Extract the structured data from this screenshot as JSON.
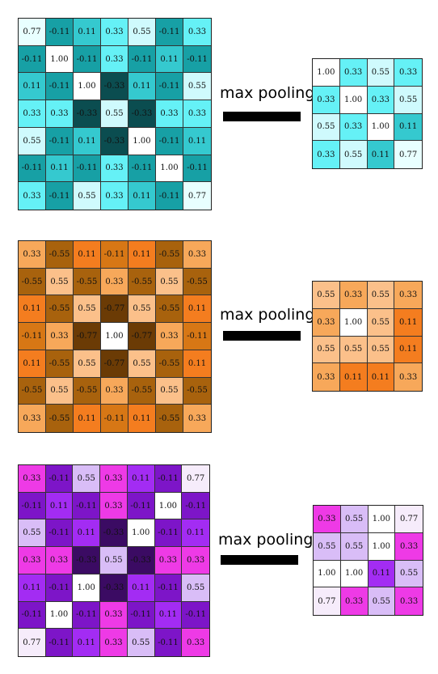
{
  "panels": [
    {
      "colors": {
        "1.00": "#ffffff",
        "0.77": "#e8ffff",
        "0.55": "#cffafd",
        "0.33": "#65f1f6",
        "0.11": "#35c9cf",
        "-0.11": "#17a0a5",
        "-0.33": "#0b4d50",
        "-0.55": "#0b4d50",
        "-0.77": "#0b4d50"
      },
      "input": [
        [
          "0.77",
          "-0.11",
          "0.11",
          "0.33",
          "0.55",
          "-0.11",
          "0.33"
        ],
        [
          "-0.11",
          "1.00",
          "-0.11",
          "0.33",
          "-0.11",
          "0.11",
          "-0.11"
        ],
        [
          "0.11",
          "-0.11",
          "1.00",
          "-0.33",
          "0.11",
          "-0.11",
          "0.55"
        ],
        [
          "0.33",
          "0.33",
          "-0.33",
          "0.55",
          "-0.33",
          "0.33",
          "0.33"
        ],
        [
          "0.55",
          "-0.11",
          "0.11",
          "-0.33",
          "1.00",
          "-0.11",
          "0.11"
        ],
        [
          "-0.11",
          "0.11",
          "-0.11",
          "0.33",
          "-0.11",
          "1.00",
          "-0.11"
        ],
        [
          "0.33",
          "-0.11",
          "0.55",
          "0.33",
          "0.11",
          "-0.11",
          "0.77"
        ]
      ],
      "label": "max pooling",
      "output": [
        [
          "1.00",
          "0.33",
          "0.55",
          "0.33"
        ],
        [
          "0.33",
          "1.00",
          "0.33",
          "0.55"
        ],
        [
          "0.55",
          "0.33",
          "1.00",
          "0.11"
        ],
        [
          "0.33",
          "0.55",
          "0.11",
          "0.77"
        ]
      ]
    },
    {
      "colors": {
        "1.00": "#ffffff",
        "0.77": "#fde0c4",
        "0.55": "#fbc08a",
        "0.33": "#f7a85a",
        "0.11": "#f47d1f",
        "-0.11": "#d77715",
        "-0.33": "#a8620d",
        "-0.55": "#a8620d",
        "-0.77": "#6b3b05"
      },
      "input": [
        [
          "0.33",
          "-0.55",
          "0.11",
          "-0.11",
          "0.11",
          "-0.55",
          "0.33"
        ],
        [
          "-0.55",
          "0.55",
          "-0.55",
          "0.33",
          "-0.55",
          "0.55",
          "-0.55"
        ],
        [
          "0.11",
          "-0.55",
          "0.55",
          "-0.77",
          "0.55",
          "-0.55",
          "0.11"
        ],
        [
          "-0.11",
          "0.33",
          "-0.77",
          "1.00",
          "-0.77",
          "0.33",
          "-0.11"
        ],
        [
          "0.11",
          "-0.55",
          "0.55",
          "-0.77",
          "0.55",
          "-0.55",
          "0.11"
        ],
        [
          "-0.55",
          "0.55",
          "-0.55",
          "0.33",
          "-0.55",
          "0.55",
          "-0.55"
        ],
        [
          "0.33",
          "-0.55",
          "0.11",
          "-0.11",
          "0.11",
          "-0.55",
          "0.33"
        ]
      ],
      "label": "max pooling",
      "output": [
        [
          "0.55",
          "0.33",
          "0.55",
          "0.33"
        ],
        [
          "0.33",
          "1.00",
          "0.55",
          "0.11"
        ],
        [
          "0.55",
          "0.55",
          "0.55",
          "0.11"
        ],
        [
          "0.33",
          "0.11",
          "0.11",
          "0.33"
        ]
      ]
    },
    {
      "colors": {
        "1.00": "#ffffff",
        "0.77": "#f6ecfb",
        "0.55": "#d9bdf7",
        "0.33": "#ee3ae6",
        "0.11": "#a32cf3",
        "-0.11": "#7d15c8",
        "-0.33": "#3b0b63",
        "-0.55": "#3b0b63",
        "-0.77": "#3b0b63"
      },
      "input": [
        [
          "0.33",
          "-0.11",
          "0.55",
          "0.33",
          "0.11",
          "-0.11",
          "0.77"
        ],
        [
          "-0.11",
          "0.11",
          "-0.11",
          "0.33",
          "-0.11",
          "1.00",
          "-0.11"
        ],
        [
          "0.55",
          "-0.11",
          "0.11",
          "-0.33",
          "1.00",
          "-0.11",
          "0.11"
        ],
        [
          "0.33",
          "0.33",
          "-0.33",
          "0.55",
          "-0.33",
          "0.33",
          "0.33"
        ],
        [
          "0.11",
          "-0.11",
          "1.00",
          "-0.33",
          "0.11",
          "-0.11",
          "0.55"
        ],
        [
          "-0.11",
          "1.00",
          "-0.11",
          "0.33",
          "-0.11",
          "0.11",
          "-0.11"
        ],
        [
          "0.77",
          "-0.11",
          "0.11",
          "0.33",
          "0.55",
          "-0.11",
          "0.33"
        ]
      ],
      "label": "max pooling",
      "output": [
        [
          "0.33",
          "0.55",
          "1.00",
          "0.77"
        ],
        [
          "0.55",
          "0.55",
          "1.00",
          "0.33"
        ],
        [
          "1.00",
          "1.00",
          "0.11",
          "0.55"
        ],
        [
          "0.77",
          "0.33",
          "0.55",
          "0.33"
        ]
      ]
    }
  ]
}
